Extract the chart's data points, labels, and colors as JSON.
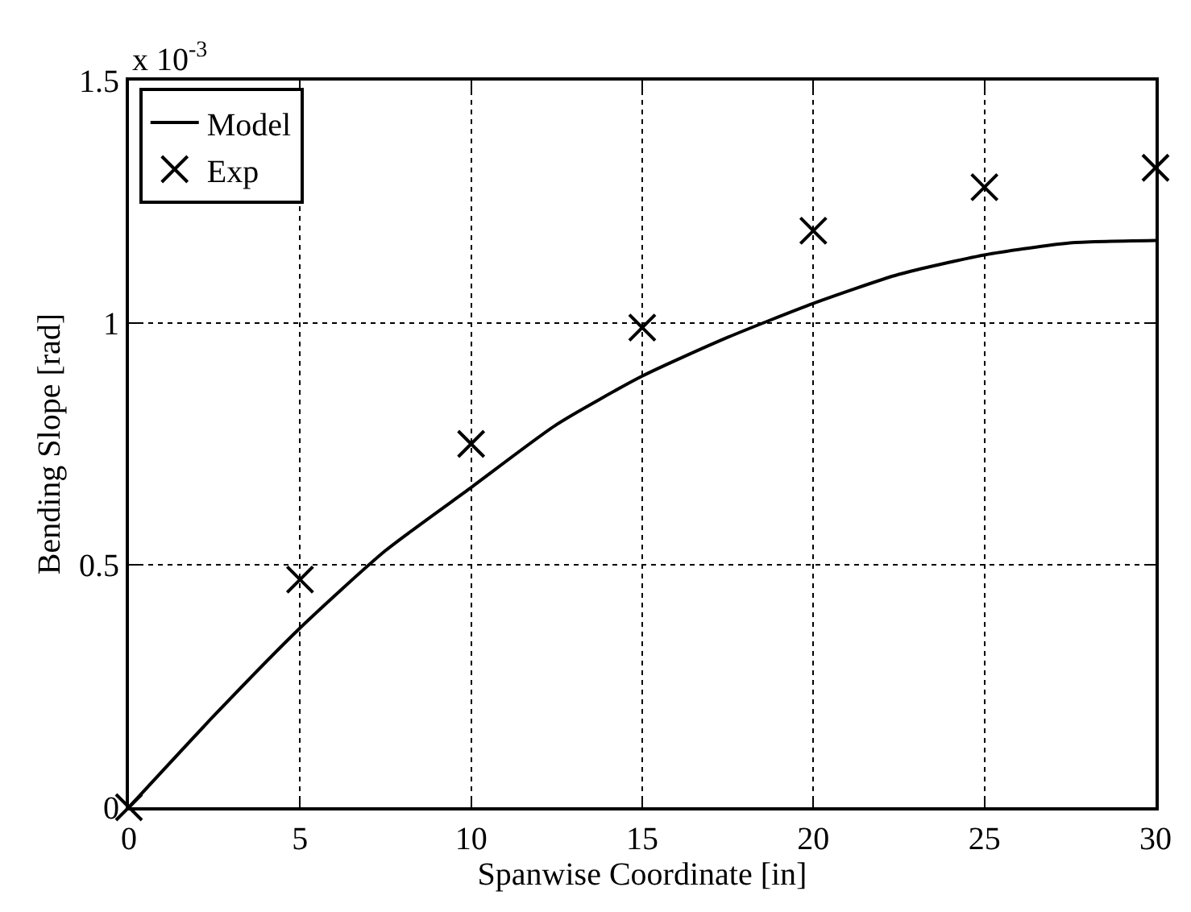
{
  "chart_data": {
    "type": "scatter",
    "xlabel": "Spanwise Coordinate [in]",
    "ylabel": "Bending Slope [rad]",
    "annotations": [
      "x 10$^{-3}$"
    ],
    "xlim": [
      0,
      30
    ],
    "xticks": [
      0,
      5,
      10,
      15,
      20,
      25,
      30
    ],
    "ylim": [
      0,
      1.5
    ],
    "yticks": [
      0,
      0.5,
      1,
      1.5
    ],
    "grid": true,
    "legend": "top left",
    "series": [
      {
        "name": "Model",
        "type": "line",
        "color": "#000000",
        "line_style": "solid",
        "marker": "none",
        "x": [
          0,
          2.5,
          5,
          7.5,
          10,
          12.5,
          15,
          17.5,
          20,
          22.5,
          25,
          27.5,
          30
        ],
        "values": [
          0,
          0.19,
          0.37,
          0.53,
          0.66,
          0.79,
          0.89,
          0.97,
          1.04,
          1.1,
          1.14,
          1.165,
          1.17
        ]
      },
      {
        "name": "Exp",
        "color": "#000000",
        "marker": "cross",
        "x": [
          0,
          5,
          10,
          15,
          20,
          25,
          30
        ],
        "values": [
          0,
          0.47,
          0.75,
          0.99,
          1.19,
          1.28,
          1.32
        ]
      }
    ]
  }
}
